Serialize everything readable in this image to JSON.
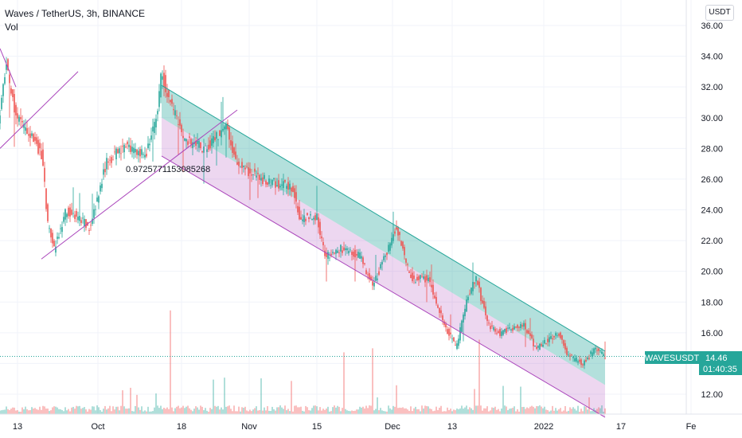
{
  "header": {
    "symbol_line": "Waves / TetherUS, 3h, BINANCE",
    "indicator_label": "Vol"
  },
  "currency_button": "USDT",
  "price_tag": {
    "symbol": "WAVESUSDT",
    "price": "14.46",
    "countdown": "01:40:35",
    "color": "#26a69a"
  },
  "colors": {
    "up": "#26a69a",
    "down": "#ef5350",
    "channel_upper": "#26a69a",
    "channel_lower": "#ab47bc",
    "trend_line": "#ab47bc"
  },
  "trend_annotation": "0.9725771153085268",
  "chart_data": {
    "type": "candlestick",
    "y_axis": {
      "min": 11,
      "max": 37,
      "ticks": [
        "36.00",
        "34.00",
        "32.00",
        "30.00",
        "28.00",
        "26.00",
        "24.00",
        "22.00",
        "20.00",
        "18.00",
        "16.00",
        "14.00",
        "12.00"
      ]
    },
    "x_ticks": [
      "13",
      "Oct",
      "18",
      "Nov",
      "15",
      "Dec",
      "13",
      "2022",
      "17",
      "Fe"
    ],
    "last_price": 14.46,
    "price_path": [
      {
        "t": 0,
        "p": 29.5
      },
      {
        "t": 10,
        "p": 33.5
      },
      {
        "t": 22,
        "p": 30.0
      },
      {
        "t": 40,
        "p": 29.0
      },
      {
        "t": 55,
        "p": 27.5
      },
      {
        "t": 62,
        "p": 23.0
      },
      {
        "t": 70,
        "p": 21.5
      },
      {
        "t": 85,
        "p": 24.0
      },
      {
        "t": 100,
        "p": 23.5
      },
      {
        "t": 115,
        "p": 22.8
      },
      {
        "t": 135,
        "p": 27.0
      },
      {
        "t": 160,
        "p": 28.3
      },
      {
        "t": 185,
        "p": 27.5
      },
      {
        "t": 200,
        "p": 30.5
      },
      {
        "t": 205,
        "p": 33.0
      },
      {
        "t": 215,
        "p": 31.0
      },
      {
        "t": 235,
        "p": 28.5
      },
      {
        "t": 260,
        "p": 28.0
      },
      {
        "t": 285,
        "p": 29.5
      },
      {
        "t": 300,
        "p": 27.0
      },
      {
        "t": 330,
        "p": 26.0
      },
      {
        "t": 370,
        "p": 25.5
      },
      {
        "t": 378,
        "p": 23.5
      },
      {
        "t": 400,
        "p": 23.5
      },
      {
        "t": 410,
        "p": 21.0
      },
      {
        "t": 430,
        "p": 21.5
      },
      {
        "t": 455,
        "p": 21.0
      },
      {
        "t": 470,
        "p": 19.0
      },
      {
        "t": 490,
        "p": 21.5
      },
      {
        "t": 500,
        "p": 23.0
      },
      {
        "t": 512,
        "p": 20.5
      },
      {
        "t": 520,
        "p": 19.5
      },
      {
        "t": 540,
        "p": 19.5
      },
      {
        "t": 560,
        "p": 16.5
      },
      {
        "t": 575,
        "p": 15.0
      },
      {
        "t": 590,
        "p": 18.5
      },
      {
        "t": 600,
        "p": 19.5
      },
      {
        "t": 615,
        "p": 16.5
      },
      {
        "t": 630,
        "p": 16.0
      },
      {
        "t": 660,
        "p": 16.5
      },
      {
        "t": 675,
        "p": 15.0
      },
      {
        "t": 690,
        "p": 15.5
      },
      {
        "t": 705,
        "p": 16.0
      },
      {
        "t": 715,
        "p": 14.5
      },
      {
        "t": 735,
        "p": 14.0
      },
      {
        "t": 750,
        "p": 15.0
      },
      {
        "t": 760,
        "p": 14.46
      }
    ],
    "channel_upper_line": {
      "from": {
        "t": 203,
        "p": 32.1
      },
      "to": {
        "t": 760,
        "p": 14.8
      }
    },
    "channel_mid_line": {
      "from": {
        "t": 203,
        "p": 30.0
      },
      "to": {
        "t": 760,
        "p": 12.6
      }
    },
    "channel_lower_line": {
      "from": {
        "t": 203,
        "p": 27.5
      },
      "to": {
        "t": 760,
        "p": 10.5
      }
    },
    "trend_lines": [
      {
        "from": {
          "t": 52,
          "p": 20.8
        },
        "to": {
          "t": 298,
          "p": 30.5
        }
      },
      {
        "from": {
          "t": 0,
          "p": 28.0
        },
        "to": {
          "t": 98,
          "p": 33.0
        }
      },
      {
        "from": {
          "t": 0,
          "p": 34.5
        },
        "to": {
          "t": 20,
          "p": 32.0
        }
      }
    ]
  }
}
